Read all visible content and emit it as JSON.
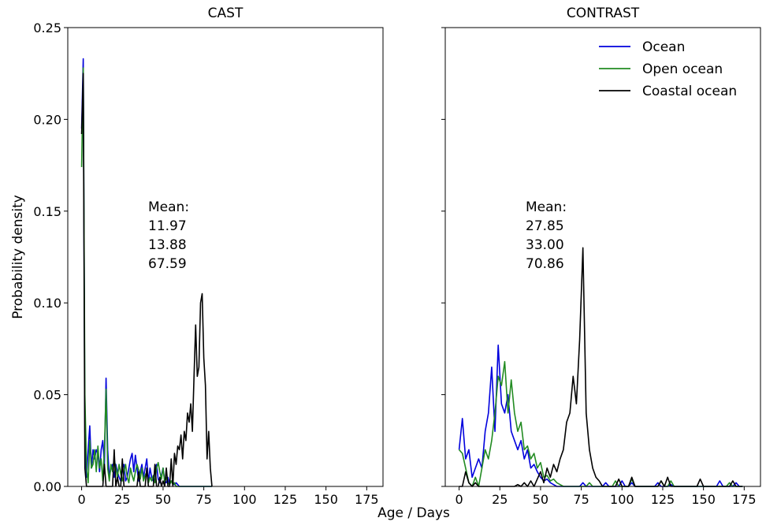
{
  "figure": {
    "xlabel": "Age / Days"
  },
  "chart_data": [
    {
      "type": "line",
      "title": "CAST",
      "ylabel": "Probability density",
      "xlim": [
        -8.5,
        185
      ],
      "ylim": [
        0,
        0.25
      ],
      "xticks": [
        0,
        25,
        50,
        75,
        100,
        125,
        150,
        175
      ],
      "yticks": [
        {
          "value": 0,
          "label": "0.00"
        },
        {
          "value": 0.05,
          "label": "0.05"
        },
        {
          "value": 0.1,
          "label": "0.10"
        },
        {
          "value": 0.15,
          "label": "0.15"
        },
        {
          "value": 0.2,
          "label": "0.20"
        },
        {
          "value": 0.25,
          "label": "0.25"
        }
      ],
      "ytick_labels": true,
      "x": [
        0,
        1,
        2,
        3,
        4,
        5,
        6,
        7,
        8,
        9,
        10,
        11,
        12,
        13,
        14,
        15,
        16,
        17,
        18,
        19,
        20,
        21,
        22,
        23,
        24,
        25,
        26,
        27,
        28,
        29,
        30,
        31,
        32,
        33,
        34,
        35,
        36,
        37,
        38,
        39,
        40,
        41,
        42,
        43,
        44,
        45,
        46,
        47,
        48,
        49,
        50,
        51,
        52,
        53,
        54,
        55,
        56,
        57,
        58,
        59,
        60,
        61,
        62,
        63,
        64,
        65,
        66,
        67,
        68,
        69,
        70,
        71,
        72,
        73,
        74,
        75,
        76,
        77,
        78,
        79,
        80
      ],
      "series": [
        {
          "color": "#0000dd",
          "values": [
            0.195,
            0.233,
            0.03,
            0.005,
            0.02,
            0.033,
            0.01,
            0.02,
            0.015,
            0.02,
            0.018,
            0.008,
            0.02,
            0.025,
            0.012,
            0.059,
            0.02,
            0.005,
            0.01,
            0.012,
            0.005,
            0.012,
            0.008,
            0.005,
            0.003,
            0.01,
            0.012,
            0.003,
            0.005,
            0.01,
            0.015,
            0.018,
            0.008,
            0.017,
            0.01,
            0.003,
            0.008,
            0.012,
            0.005,
            0.01,
            0.015,
            0.002,
            0.01,
            0.005,
            0.003,
            0.008,
            0.012,
            0.004,
            0.002,
            0.006,
            0.01,
            0.003,
            0.002,
            0.005,
            0.001,
            0.003,
            0.002,
            0.001,
            0.002,
            0.001,
            0,
            0,
            0,
            0,
            0,
            0,
            0,
            0,
            0,
            0,
            0,
            0,
            0,
            0,
            0,
            0,
            0,
            0,
            0,
            0,
            0
          ]
        },
        {
          "color": "#228b22",
          "values": [
            0.174,
            0.228,
            0.05,
            0.01,
            0.002,
            0.025,
            0.01,
            0.012,
            0.02,
            0.008,
            0.022,
            0.01,
            0.015,
            0.003,
            0.02,
            0.053,
            0.01,
            0.003,
            0.012,
            0.008,
            0.015,
            0.01,
            0.005,
            0.012,
            0.007,
            0.003,
            0.008,
            0.012,
            0.005,
            0.002,
            0.01,
            0.006,
            0.003,
            0.008,
            0.012,
            0.009,
            0.004,
            0.01,
            0.003,
            0.006,
            0.008,
            0.002,
            0.005,
            0.003,
            0.006,
            0.002,
            0.01,
            0.013,
            0.008,
            0.004,
            0.01,
            0.002,
            0.005,
            0.002,
            0.001,
            0.003,
            0.001,
            0.002,
            0,
            0,
            0,
            0,
            0,
            0,
            0,
            0,
            0,
            0,
            0,
            0,
            0,
            0,
            0,
            0,
            0,
            0,
            0,
            0,
            0,
            0,
            0
          ]
        },
        {
          "color": "#000000",
          "values": [
            0.192,
            0.225,
            0.01,
            0,
            0,
            0,
            0,
            0,
            0,
            0,
            0,
            0,
            0,
            0,
            0.012,
            0,
            0,
            0,
            0,
            0,
            0.02,
            0,
            0.005,
            0,
            0,
            0.015,
            0,
            0,
            0,
            0,
            0,
            0,
            0,
            0,
            0,
            0.008,
            0,
            0,
            0,
            0,
            0.01,
            0,
            0,
            0,
            0,
            0.012,
            0,
            0,
            0.005,
            0,
            0.003,
            0,
            0.01,
            0,
            0,
            0.015,
            0,
            0.018,
            0.012,
            0.022,
            0.02,
            0.028,
            0.015,
            0.03,
            0.025,
            0.04,
            0.035,
            0.045,
            0.03,
            0.06,
            0.088,
            0.06,
            0.065,
            0.1,
            0.105,
            0.07,
            0.055,
            0.015,
            0.03,
            0.01,
            0
          ]
        }
      ],
      "annotations": [
        {
          "text": "Mean:",
          "color": "#000000"
        },
        {
          "text": "11.97",
          "color": "#0000dd"
        },
        {
          "text": "13.88",
          "color": "#228b22"
        },
        {
          "text": "67.59",
          "color": "#000000"
        }
      ]
    },
    {
      "type": "line",
      "title": "CONTRAST",
      "xlim": [
        -8.5,
        185
      ],
      "ylim": [
        0,
        0.25
      ],
      "xticks": [
        0,
        25,
        50,
        75,
        100,
        125,
        150,
        175
      ],
      "yticks": [
        {
          "value": 0,
          "label": "0.00"
        },
        {
          "value": 0.05,
          "label": "0.05"
        },
        {
          "value": 0.1,
          "label": "0.10"
        },
        {
          "value": 0.15,
          "label": "0.15"
        },
        {
          "value": 0.2,
          "label": "0.20"
        },
        {
          "value": 0.25,
          "label": "0.25"
        }
      ],
      "ytick_labels": false,
      "legend": "upper right",
      "x": [
        0,
        2,
        4,
        6,
        8,
        10,
        12,
        14,
        16,
        18,
        20,
        22,
        24,
        26,
        28,
        30,
        32,
        34,
        36,
        38,
        40,
        42,
        44,
        46,
        48,
        50,
        52,
        54,
        56,
        58,
        60,
        62,
        64,
        66,
        68,
        70,
        72,
        74,
        76,
        78,
        80,
        82,
        84,
        86,
        88,
        90,
        92,
        94,
        96,
        98,
        100,
        102,
        104,
        106,
        108,
        110,
        112,
        114,
        116,
        118,
        120,
        122,
        124,
        126,
        128,
        130,
        132,
        134,
        136,
        138,
        140,
        142,
        144,
        146,
        148,
        150,
        152,
        154,
        156,
        158,
        160,
        162,
        164,
        166,
        168,
        170,
        172,
        174
      ],
      "series": [
        {
          "name": "Ocean",
          "color": "#0000dd",
          "values": [
            0.02,
            0.037,
            0.015,
            0.02,
            0.005,
            0.01,
            0.015,
            0.01,
            0.03,
            0.04,
            0.065,
            0.03,
            0.077,
            0.045,
            0.04,
            0.05,
            0.03,
            0.025,
            0.02,
            0.025,
            0.015,
            0.02,
            0.01,
            0.012,
            0.008,
            0.005,
            0.003,
            0.004,
            0.002,
            0.001,
            0,
            0,
            0,
            0,
            0,
            0,
            0,
            0,
            0.002,
            0,
            0,
            0,
            0,
            0,
            0,
            0.002,
            0,
            0,
            0,
            0,
            0.003,
            0,
            0,
            0.002,
            0,
            0,
            0,
            0,
            0,
            0,
            0,
            0.002,
            0,
            0,
            0,
            0.001,
            0,
            0,
            0,
            0,
            0,
            0,
            0,
            0,
            0,
            0,
            0,
            0,
            0,
            0,
            0.003,
            0,
            0,
            0,
            0,
            0.002,
            0,
            0
          ]
        },
        {
          "name": "Open ocean",
          "color": "#228b22",
          "values": [
            0.02,
            0.018,
            0.01,
            0.002,
            0,
            0.005,
            0,
            0.01,
            0.02,
            0.015,
            0.025,
            0.04,
            0.06,
            0.055,
            0.068,
            0.04,
            0.058,
            0.04,
            0.03,
            0.035,
            0.02,
            0.022,
            0.015,
            0.018,
            0.01,
            0.013,
            0.005,
            0.006,
            0.003,
            0.004,
            0.002,
            0.001,
            0,
            0,
            0,
            0,
            0,
            0,
            0,
            0,
            0.002,
            0,
            0,
            0,
            0,
            0,
            0,
            0,
            0.003,
            0,
            0,
            0,
            0,
            0.004,
            0,
            0,
            0,
            0,
            0,
            0,
            0,
            0,
            0.003,
            0,
            0,
            0.003,
            0,
            0,
            0,
            0,
            0,
            0,
            0,
            0,
            0,
            0,
            0,
            0,
            0,
            0,
            0,
            0,
            0,
            0.002,
            0,
            0,
            0,
            0
          ]
        },
        {
          "name": "Coastal ocean",
          "color": "#000000",
          "values": [
            0,
            0,
            0.008,
            0.002,
            0,
            0.002,
            0,
            0,
            0,
            0,
            0,
            0,
            0,
            0,
            0,
            0,
            0,
            0,
            0.001,
            0,
            0.002,
            0,
            0.003,
            0,
            0.004,
            0.008,
            0.002,
            0.01,
            0.005,
            0.012,
            0.008,
            0.015,
            0.02,
            0.035,
            0.04,
            0.06,
            0.045,
            0.08,
            0.13,
            0.04,
            0.02,
            0.01,
            0.005,
            0.003,
            0,
            0,
            0,
            0,
            0,
            0.004,
            0,
            0,
            0,
            0.005,
            0,
            0,
            0,
            0,
            0,
            0,
            0,
            0,
            0.003,
            0,
            0.005,
            0,
            0,
            0,
            0,
            0,
            0,
            0,
            0,
            0,
            0.004,
            0,
            0,
            0,
            0,
            0,
            0,
            0,
            0,
            0,
            0.003,
            0,
            0,
            0
          ]
        }
      ],
      "annotations": [
        {
          "text": "Mean:",
          "color": "#000000"
        },
        {
          "text": "27.85",
          "color": "#0000dd"
        },
        {
          "text": "33.00",
          "color": "#228b22"
        },
        {
          "text": "70.86",
          "color": "#000000"
        }
      ]
    }
  ]
}
